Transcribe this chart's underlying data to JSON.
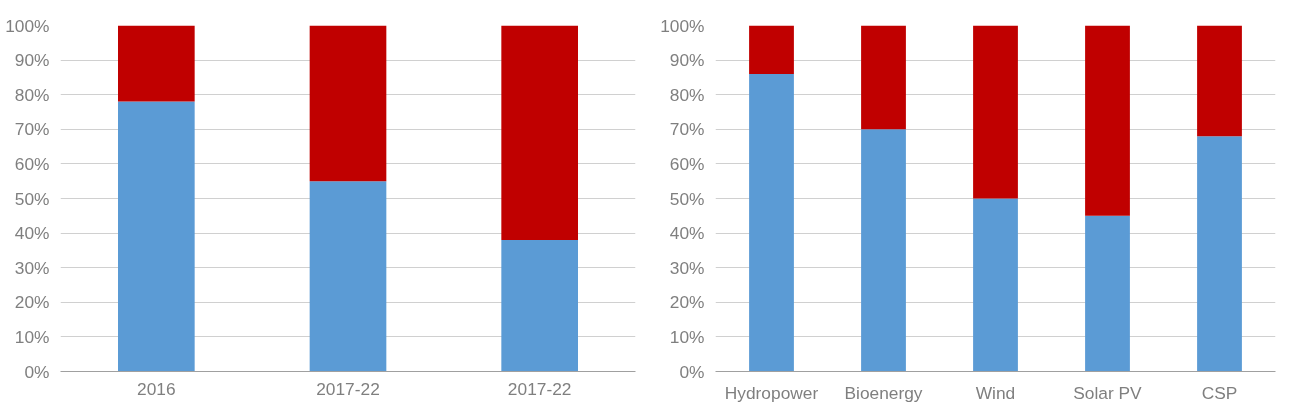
{
  "chart_data": [
    {
      "type": "bar",
      "stacked": true,
      "categories": [
        "2016",
        "2017-22",
        "2017-22"
      ],
      "series": [
        {
          "color": "#5b9bd5",
          "values": [
            78,
            55,
            38
          ]
        },
        {
          "color": "#c00000",
          "values": [
            22,
            45,
            62
          ]
        }
      ],
      "ylim": [
        0,
        100
      ],
      "yticks": [
        {
          "value": 0,
          "label": "0%"
        },
        {
          "value": 10,
          "label": "10%"
        },
        {
          "value": 20,
          "label": "20%"
        },
        {
          "value": 30,
          "label": "30%"
        },
        {
          "value": 40,
          "label": "40%"
        },
        {
          "value": 50,
          "label": "50%"
        },
        {
          "value": 60,
          "label": "60%"
        },
        {
          "value": 70,
          "label": "70%"
        },
        {
          "value": 80,
          "label": "80%"
        },
        {
          "value": 90,
          "label": "90%"
        },
        {
          "value": 100,
          "label": "100%"
        }
      ],
      "grid": "y"
    },
    {
      "type": "bar",
      "stacked": true,
      "categories": [
        "Hydropower",
        "Bioenergy",
        "Wind",
        "Solar PV",
        "CSP"
      ],
      "series": [
        {
          "color": "#5b9bd5",
          "values": [
            86,
            70,
            50,
            45,
            68
          ]
        },
        {
          "color": "#c00000",
          "values": [
            14,
            30,
            50,
            55,
            32
          ]
        }
      ],
      "ylim": [
        0,
        100
      ],
      "yticks": [
        {
          "value": 0,
          "label": "0%"
        },
        {
          "value": 10,
          "label": "10%"
        },
        {
          "value": 20,
          "label": "20%"
        },
        {
          "value": 30,
          "label": "30%"
        },
        {
          "value": 40,
          "label": "40%"
        },
        {
          "value": 50,
          "label": "50%"
        },
        {
          "value": 60,
          "label": "60%"
        },
        {
          "value": 70,
          "label": "70%"
        },
        {
          "value": 80,
          "label": "80%"
        },
        {
          "value": 90,
          "label": "90%"
        },
        {
          "value": 100,
          "label": "100%"
        }
      ],
      "grid": "y"
    }
  ]
}
